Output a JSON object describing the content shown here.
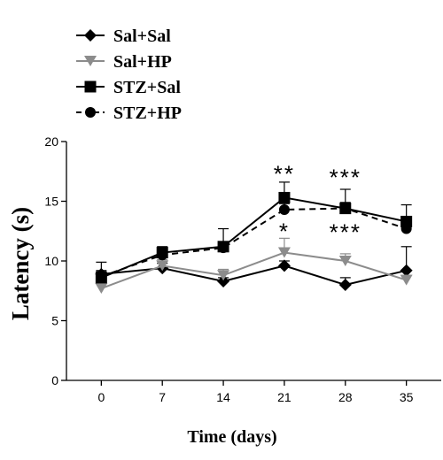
{
  "chart_data": {
    "type": "line",
    "xlabel": "Time (days)",
    "ylabel": "Latency (s)",
    "x": [
      0,
      7,
      14,
      21,
      28,
      35
    ],
    "xlim": [
      -4,
      39
    ],
    "ylim": [
      0,
      20
    ],
    "yticks": [
      0,
      5,
      10,
      15,
      20
    ],
    "legend_position": "top-left",
    "grid": false,
    "series": [
      {
        "name": "Sal+Sal",
        "marker": "diamond",
        "color": "#000000",
        "dash": false,
        "values": [
          8.9,
          9.4,
          8.3,
          9.6,
          8.0,
          9.2
        ],
        "errors": [
          1.0,
          0.4,
          0.3,
          0.4,
          0.6,
          2.0
        ]
      },
      {
        "name": "Sal+HP",
        "marker": "triangle-down",
        "color": "#8c8c8c",
        "dash": false,
        "values": [
          7.7,
          9.6,
          8.8,
          10.7,
          10.0,
          8.4
        ],
        "errors": [
          0.5,
          0.5,
          0.5,
          1.2,
          0.6,
          0.4
        ]
      },
      {
        "name": "STZ+Sal",
        "marker": "square",
        "color": "#000000",
        "dash": false,
        "values": [
          8.6,
          10.7,
          11.2,
          15.3,
          14.4,
          13.3
        ],
        "errors": [
          0.5,
          0.5,
          1.5,
          1.3,
          1.6,
          1.4
        ]
      },
      {
        "name": "STZ+HP",
        "marker": "circle",
        "color": "#000000",
        "dash": true,
        "values": [
          8.7,
          10.5,
          11.1,
          14.3,
          14.4,
          12.7
        ],
        "errors": [
          0.5,
          0.5,
          0.5,
          0.5,
          0.5,
          0.5
        ]
      }
    ],
    "annotations": [
      {
        "x": 21,
        "y": 17.3,
        "text": "**"
      },
      {
        "x": 21,
        "y": 12.5,
        "text": "*"
      },
      {
        "x": 28,
        "y": 17.0,
        "text": "***"
      },
      {
        "x": 28,
        "y": 12.4,
        "text": "***"
      },
      {
        "x": 35,
        "y": 12.4,
        "text": "*"
      }
    ]
  }
}
